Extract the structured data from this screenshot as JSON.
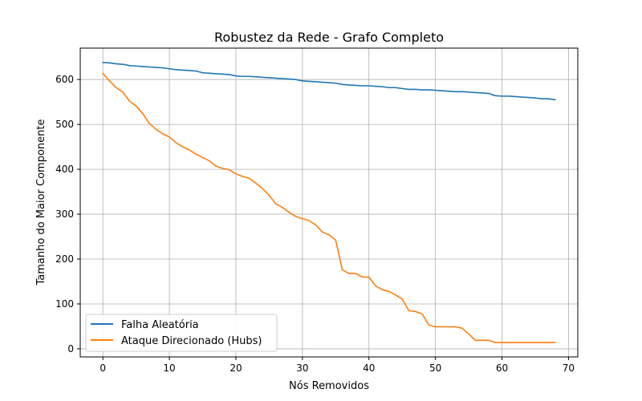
{
  "chart_data": {
    "type": "line",
    "title": "Robustez da Rede - Grafo Completo",
    "xlabel": "Nós Removidos",
    "ylabel": "Tamanho do Maior Componente",
    "xlim": [
      -3.4,
      71.4
    ],
    "ylim": [
      -18,
      670
    ],
    "xticks": [
      0,
      10,
      20,
      30,
      40,
      50,
      60,
      70
    ],
    "yticks": [
      0,
      100,
      200,
      300,
      400,
      500,
      600
    ],
    "grid": true,
    "legend_position": "lower-left",
    "x": [
      0,
      1,
      2,
      3,
      4,
      5,
      6,
      7,
      8,
      9,
      10,
      11,
      12,
      13,
      14,
      15,
      16,
      17,
      18,
      19,
      20,
      21,
      22,
      23,
      24,
      25,
      26,
      27,
      28,
      29,
      30,
      31,
      32,
      33,
      34,
      35,
      36,
      37,
      38,
      39,
      40,
      41,
      42,
      43,
      44,
      45,
      46,
      47,
      48,
      49,
      50,
      51,
      52,
      53,
      54,
      55,
      56,
      57,
      58,
      59,
      60,
      61,
      62,
      63,
      64,
      65,
      66,
      67,
      68
    ],
    "series": [
      {
        "name": "Falha Aleatória",
        "color": "#1f77b4",
        "values": [
          638,
          637,
          635,
          634,
          631,
          630,
          629,
          628,
          627,
          626,
          624,
          622,
          621,
          620,
          619,
          615,
          614,
          613,
          612,
          611,
          608,
          607,
          607,
          606,
          605,
          604,
          603,
          602,
          601,
          600,
          597,
          596,
          595,
          594,
          593,
          592,
          589,
          588,
          587,
          586,
          586,
          585,
          584,
          582,
          582,
          580,
          578,
          578,
          577,
          577,
          576,
          575,
          574,
          573,
          573,
          572,
          571,
          570,
          569,
          564,
          563,
          563,
          562,
          561,
          560,
          559,
          557,
          557,
          555
        ]
      },
      {
        "name": "Ataque Direcionado (Hubs)",
        "color": "#ff7f0e",
        "values": [
          614,
          597,
          582,
          572,
          552,
          541,
          524,
          502,
          489,
          479,
          472,
          459,
          450,
          443,
          434,
          426,
          419,
          407,
          402,
          399,
          390,
          384,
          380,
          369,
          357,
          342,
          323,
          315,
          304,
          295,
          290,
          286,
          276,
          260,
          254,
          242,
          176,
          168,
          168,
          160,
          160,
          140,
          132,
          128,
          120,
          111,
          85,
          83,
          78,
          53,
          49,
          49,
          49,
          49,
          46,
          33,
          19,
          19,
          19,
          14,
          14,
          14,
          14,
          14,
          14,
          14,
          14,
          14,
          14
        ]
      }
    ]
  }
}
